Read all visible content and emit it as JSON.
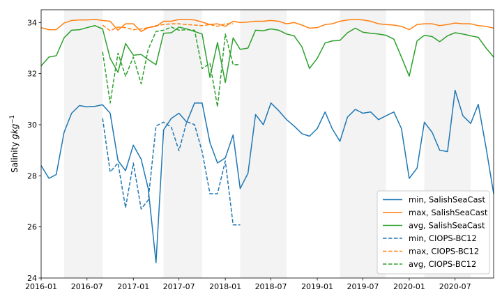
{
  "chart_data": {
    "type": "line",
    "title": "",
    "xlabel": "",
    "ylabel": "Salinity gkg⁻¹",
    "ylabel_parts": {
      "base": "Salinity ",
      "unit": "gkg",
      "exp": "−1"
    },
    "xlim": [
      "2016-01-01",
      "2020-12-01"
    ],
    "ylim": [
      24,
      34.5
    ],
    "xticks": [
      {
        "date": "2016-01-01",
        "label": "2016-01"
      },
      {
        "date": "2016-07-01",
        "label": "2016-07"
      },
      {
        "date": "2017-01-01",
        "label": "2017-01"
      },
      {
        "date": "2017-07-01",
        "label": "2017-07"
      },
      {
        "date": "2018-01-01",
        "label": "2018-01"
      },
      {
        "date": "2018-07-01",
        "label": "2018-07"
      },
      {
        "date": "2019-01-01",
        "label": "2019-01"
      },
      {
        "date": "2019-07-01",
        "label": "2019-07"
      },
      {
        "date": "2020-01-01",
        "label": "2020-01"
      },
      {
        "date": "2020-07-01",
        "label": "2020-07"
      }
    ],
    "yticks": [
      24,
      26,
      28,
      30,
      32,
      34
    ],
    "grid": false,
    "legend": "lower-right",
    "shaded_periods": [
      [
        "2016-04-01",
        "2016-09-01"
      ],
      [
        "2017-05-01",
        "2017-10-01"
      ],
      [
        "2018-03-01",
        "2018-09-01"
      ],
      [
        "2019-04-01",
        "2019-10-01"
      ],
      [
        "2020-03-01",
        "2020-09-01"
      ]
    ],
    "series": [
      {
        "name": "min, SalishSeaCast",
        "color": "#1f77b4",
        "dash": false,
        "x": [
          "2016-01-01",
          "2016-02-01",
          "2016-03-01",
          "2016-04-01",
          "2016-05-01",
          "2016-06-01",
          "2016-07-01",
          "2016-08-01",
          "2016-09-01",
          "2016-10-01",
          "2016-11-01",
          "2016-12-01",
          "2017-01-01",
          "2017-02-01",
          "2017-03-01",
          "2017-04-01",
          "2017-05-01",
          "2017-06-01",
          "2017-07-01",
          "2017-08-01",
          "2017-09-01",
          "2017-10-01",
          "2017-11-01",
          "2017-12-01",
          "2018-01-01",
          "2018-02-01",
          "2018-03-01",
          "2018-04-01",
          "2018-05-01",
          "2018-06-01",
          "2018-07-01",
          "2018-08-01",
          "2018-09-01",
          "2018-10-01",
          "2018-11-01",
          "2018-12-01",
          "2019-01-01",
          "2019-02-01",
          "2019-03-01",
          "2019-04-01",
          "2019-05-01",
          "2019-06-01",
          "2019-07-01",
          "2019-08-01",
          "2019-09-01",
          "2019-10-01",
          "2019-11-01",
          "2019-12-01",
          "2020-01-01",
          "2020-02-01",
          "2020-03-01",
          "2020-04-01",
          "2020-05-01",
          "2020-06-01",
          "2020-07-01",
          "2020-08-01",
          "2020-09-01",
          "2020-10-01",
          "2020-11-01",
          "2020-12-01"
        ],
        "y": [
          28.4,
          27.9,
          28.05,
          29.7,
          30.45,
          30.75,
          30.7,
          30.72,
          30.78,
          30.45,
          28.6,
          28.2,
          29.2,
          28.65,
          27.5,
          24.6,
          29.8,
          30.25,
          30.45,
          30.1,
          30.85,
          30.85,
          29.3,
          28.5,
          28.7,
          29.6,
          27.5,
          28.1,
          30.4,
          30.0,
          30.85,
          30.55,
          30.2,
          29.95,
          29.65,
          29.55,
          29.85,
          30.5,
          29.85,
          29.35,
          30.3,
          30.6,
          30.45,
          30.5,
          30.2,
          30.35,
          30.5,
          29.85,
          27.9,
          28.3,
          30.1,
          29.7,
          29.0,
          28.95,
          31.35,
          30.35,
          30.05,
          30.8,
          29.1,
          27.3
        ]
      },
      {
        "name": "max, SalishSeaCast",
        "color": "#ff7f0e",
        "dash": false,
        "x": [
          "2016-01-01",
          "2016-02-01",
          "2016-03-01",
          "2016-04-01",
          "2016-05-01",
          "2016-06-01",
          "2016-07-01",
          "2016-08-01",
          "2016-09-01",
          "2016-10-01",
          "2016-11-01",
          "2016-12-01",
          "2017-01-01",
          "2017-02-01",
          "2017-03-01",
          "2017-04-01",
          "2017-05-01",
          "2017-06-01",
          "2017-07-01",
          "2017-08-01",
          "2017-09-01",
          "2017-10-01",
          "2017-11-01",
          "2017-12-01",
          "2018-01-01",
          "2018-02-01",
          "2018-03-01",
          "2018-04-01",
          "2018-05-01",
          "2018-06-01",
          "2018-07-01",
          "2018-08-01",
          "2018-09-01",
          "2018-10-01",
          "2018-11-01",
          "2018-12-01",
          "2019-01-01",
          "2019-02-01",
          "2019-03-01",
          "2019-04-01",
          "2019-05-01",
          "2019-06-01",
          "2019-07-01",
          "2019-08-01",
          "2019-09-01",
          "2019-10-01",
          "2019-11-01",
          "2019-12-01",
          "2020-01-01",
          "2020-02-01",
          "2020-03-01",
          "2020-04-01",
          "2020-05-01",
          "2020-06-01",
          "2020-07-01",
          "2020-08-01",
          "2020-09-01",
          "2020-10-01",
          "2020-11-01",
          "2020-12-01"
        ],
        "y": [
          33.8,
          33.72,
          33.72,
          33.98,
          34.08,
          34.1,
          34.1,
          34.12,
          34.08,
          34.05,
          33.7,
          33.95,
          33.95,
          33.65,
          33.8,
          33.85,
          34.05,
          34.05,
          34.12,
          34.12,
          34.1,
          34.02,
          33.92,
          33.95,
          33.85,
          34.05,
          34.0,
          34.02,
          34.05,
          34.05,
          34.08,
          34.05,
          33.95,
          34.0,
          33.9,
          33.78,
          33.8,
          33.92,
          33.95,
          34.05,
          34.1,
          34.12,
          34.1,
          34.05,
          33.95,
          33.92,
          33.9,
          33.85,
          33.72,
          33.92,
          33.95,
          33.95,
          33.88,
          33.92,
          33.98,
          33.95,
          33.95,
          33.88,
          33.85,
          33.78
        ]
      },
      {
        "name": "avg, SalishSeaCast",
        "color": "#2ca02c",
        "dash": false,
        "x": [
          "2016-01-01",
          "2016-02-01",
          "2016-03-01",
          "2016-04-01",
          "2016-05-01",
          "2016-06-01",
          "2016-07-01",
          "2016-08-01",
          "2016-09-01",
          "2016-10-01",
          "2016-11-01",
          "2016-12-01",
          "2017-01-01",
          "2017-02-01",
          "2017-03-01",
          "2017-04-01",
          "2017-05-01",
          "2017-06-01",
          "2017-07-01",
          "2017-08-01",
          "2017-09-01",
          "2017-10-01",
          "2017-11-01",
          "2017-12-01",
          "2018-01-01",
          "2018-02-01",
          "2018-03-01",
          "2018-04-01",
          "2018-05-01",
          "2018-06-01",
          "2018-07-01",
          "2018-08-01",
          "2018-09-01",
          "2018-10-01",
          "2018-11-01",
          "2018-12-01",
          "2019-01-01",
          "2019-02-01",
          "2019-03-01",
          "2019-04-01",
          "2019-05-01",
          "2019-06-01",
          "2019-07-01",
          "2019-08-01",
          "2019-09-01",
          "2019-10-01",
          "2019-11-01",
          "2019-12-01",
          "2020-01-01",
          "2020-02-01",
          "2020-03-01",
          "2020-04-01",
          "2020-05-01",
          "2020-06-01",
          "2020-07-01",
          "2020-08-01",
          "2020-09-01",
          "2020-10-01",
          "2020-11-01",
          "2020-12-01"
        ],
        "y": [
          32.3,
          32.65,
          32.7,
          33.4,
          33.7,
          33.72,
          33.8,
          33.88,
          33.75,
          32.6,
          32.05,
          33.18,
          32.72,
          32.75,
          32.55,
          32.35,
          33.58,
          33.6,
          33.82,
          33.75,
          33.65,
          33.55,
          31.85,
          33.22,
          31.65,
          33.4,
          32.95,
          33.0,
          33.7,
          33.68,
          33.75,
          33.7,
          33.55,
          33.48,
          33.05,
          32.2,
          32.6,
          33.2,
          33.28,
          33.3,
          33.6,
          33.78,
          33.62,
          33.58,
          33.55,
          33.5,
          33.35,
          32.65,
          31.9,
          33.28,
          33.5,
          33.45,
          33.25,
          33.48,
          33.6,
          33.55,
          33.48,
          33.42,
          33.0,
          32.65
        ]
      },
      {
        "name": "min, CIOPS-BC12",
        "color": "#1f77b4",
        "dash": true,
        "x": [
          "2016-09-01",
          "2016-10-01",
          "2016-11-01",
          "2016-12-01",
          "2017-01-01",
          "2017-02-01",
          "2017-03-01",
          "2017-04-01",
          "2017-05-01",
          "2017-06-01",
          "2017-07-01",
          "2017-08-01",
          "2017-09-01",
          "2017-10-01",
          "2017-11-01",
          "2017-12-01",
          "2018-01-01",
          "2018-02-01",
          "2018-03-01"
        ],
        "y": [
          30.25,
          28.15,
          28.5,
          26.75,
          28.5,
          26.7,
          27.05,
          29.95,
          30.1,
          29.9,
          28.98,
          30.12,
          30.0,
          28.95,
          27.3,
          27.3,
          28.58,
          26.08,
          26.08
        ]
      },
      {
        "name": "max, CIOPS-BC12",
        "color": "#ff7f0e",
        "dash": true,
        "x": [
          "2016-09-01",
          "2016-10-01",
          "2016-11-01",
          "2016-12-01",
          "2017-01-01",
          "2017-02-01",
          "2017-03-01",
          "2017-04-01",
          "2017-05-01",
          "2017-06-01",
          "2017-07-01",
          "2017-08-01",
          "2017-09-01",
          "2017-10-01",
          "2017-11-01",
          "2017-12-01",
          "2018-01-01",
          "2018-02-01"
        ],
        "y": [
          33.9,
          33.68,
          33.82,
          33.8,
          33.72,
          33.75,
          33.8,
          33.88,
          33.92,
          33.95,
          33.95,
          33.92,
          33.9,
          33.88,
          33.92,
          33.85,
          33.95,
          33.95
        ]
      },
      {
        "name": "avg, CIOPS-BC12",
        "color": "#2ca02c",
        "dash": true,
        "x": [
          "2016-09-01",
          "2016-10-01",
          "2016-11-01",
          "2016-12-01",
          "2017-01-01",
          "2017-02-01",
          "2017-03-01",
          "2017-04-01",
          "2017-05-01",
          "2017-06-01",
          "2017-07-01",
          "2017-08-01",
          "2017-09-01",
          "2017-10-01",
          "2017-11-01",
          "2017-12-01",
          "2018-01-01",
          "2018-02-01",
          "2018-03-01"
        ],
        "y": [
          32.85,
          30.85,
          32.8,
          31.9,
          32.65,
          31.6,
          32.95,
          33.65,
          33.7,
          33.82,
          33.7,
          33.72,
          33.7,
          32.2,
          32.4,
          30.7,
          33.55,
          32.35,
          32.35
        ]
      }
    ]
  }
}
